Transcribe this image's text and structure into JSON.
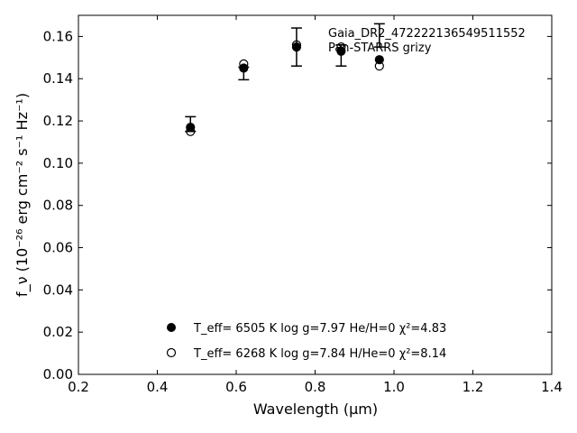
{
  "chart_data": {
    "type": "scatter",
    "title": "",
    "xlabel": "Wavelength (μm)",
    "ylabel": "f_ν (10⁻²⁶ erg cm⁻² s⁻¹ Hz⁻¹)",
    "xlim": [
      0.2,
      1.4
    ],
    "ylim": [
      0.0,
      0.17
    ],
    "x_ticks": [
      0.2,
      0.4,
      0.6,
      0.8,
      1.0,
      1.2,
      1.4
    ],
    "x_tick_labels": [
      "0.2",
      "0.4",
      "0.6",
      "0.8",
      "1.0",
      "1.2",
      "1.4"
    ],
    "y_ticks": [
      0.0,
      0.02,
      0.04,
      0.06,
      0.08,
      0.1,
      0.12,
      0.14,
      0.16
    ],
    "y_tick_labels": [
      "0.00",
      "0.02",
      "0.04",
      "0.06",
      "0.08",
      "0.10",
      "0.12",
      "0.14",
      "0.16"
    ],
    "grid": false,
    "annotation_lines": [
      "Gaia_DR2_472222136549511552",
      "Pan-STARRS grizy"
    ],
    "observed": {
      "x": [
        0.484,
        0.619,
        0.753,
        0.866,
        0.963
      ],
      "y": [
        0.1185,
        0.1425,
        0.155,
        0.151,
        0.1605
      ],
      "yerr": [
        0.0035,
        0.003,
        0.009,
        0.005,
        0.0055
      ]
    },
    "series": [
      {
        "label": "T_eff= 6505 K log g=7.97 He/H=0 χ²=4.83",
        "marker": "filled-circle",
        "x": [
          0.484,
          0.619,
          0.753,
          0.866,
          0.963
        ],
        "y": [
          0.117,
          0.145,
          0.155,
          0.153,
          0.149
        ]
      },
      {
        "label": "T_eff= 6268 K log g=7.84 H/He=0 χ²=8.14",
        "marker": "open-circle",
        "x": [
          0.484,
          0.619,
          0.753,
          0.866,
          0.963
        ],
        "y": [
          0.115,
          0.147,
          0.156,
          0.155,
          0.146
        ]
      }
    ],
    "legend_placement": "bottom-center",
    "colors": {
      "marker": "#000000",
      "axes": "#000000",
      "background": "#ffffff"
    }
  }
}
